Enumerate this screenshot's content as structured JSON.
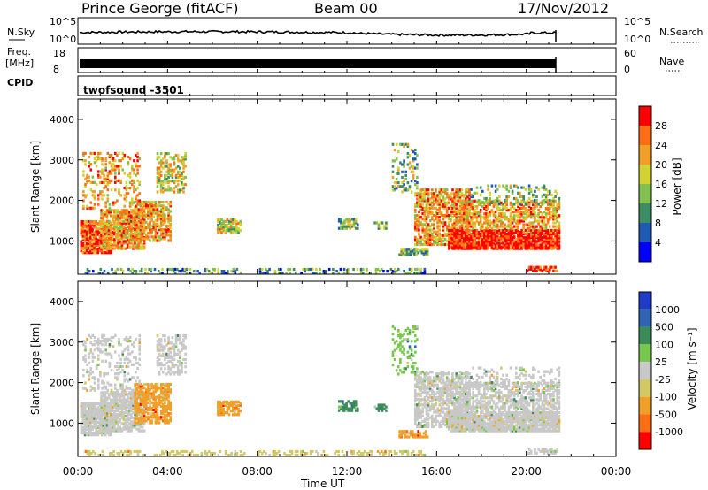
{
  "header": {
    "title": "Prince George (fitACF)",
    "beam": "Beam 00",
    "date": "17/Nov/2012",
    "cpid_label": "CPID",
    "cpid_value": "twofsound -3501"
  },
  "panels": {
    "nsky": {
      "label": "N.Sky",
      "left_ticks": [
        "10^5",
        "10^0"
      ],
      "right_ticks": [
        "10^5",
        "10^0"
      ],
      "right_label": "N.Search"
    },
    "freq": {
      "label_line1": "Freq.",
      "label_line2": "[MHz]",
      "left_ticks": [
        "18",
        "8"
      ],
      "right_ticks": [
        "60",
        "0"
      ],
      "right_label": "Nave"
    }
  },
  "colors": {
    "power_scale": [
      "#0000ff",
      "#1f5ab4",
      "#3c8c64",
      "#82c050",
      "#d2d232",
      "#f0a028",
      "#ff6e14",
      "#ff0000"
    ],
    "velocity_scale": [
      "#1e3cc8",
      "#3264b4",
      "#3c8c5a",
      "#78c850",
      "#c8c8c8",
      "#d2c864",
      "#f0a028",
      "#ff6e14",
      "#ff0000"
    ]
  },
  "chart_data": [
    {
      "type": "heatmap",
      "name": "power",
      "ylabel": "Slant Range [km]",
      "ylim": [
        180,
        4500
      ],
      "yticks": [
        "1000",
        "2000",
        "3000",
        "4000"
      ],
      "colorbar_label": "Power [dB]",
      "colorbar_ticks": [
        "4",
        "8",
        "12",
        "16",
        "20",
        "24",
        "28"
      ],
      "clim": [
        0,
        32
      ]
    },
    {
      "type": "heatmap",
      "name": "velocity",
      "ylabel": "Slant Range [km]",
      "ylim": [
        180,
        4500
      ],
      "yticks": [
        "1000",
        "2000",
        "3000",
        "4000"
      ],
      "colorbar_label": "Velocity [m s⁻¹]",
      "colorbar_ticks": [
        "1000",
        "500",
        "100",
        "25",
        "-25",
        "-100",
        "-500",
        "-1000"
      ]
    }
  ],
  "xaxis": {
    "label": "Time UT",
    "ticks": [
      "00:00",
      "04:00",
      "08:00",
      "12:00",
      "16:00",
      "20:00",
      "00:00"
    ],
    "xlim_hours": [
      0,
      24
    ]
  }
}
